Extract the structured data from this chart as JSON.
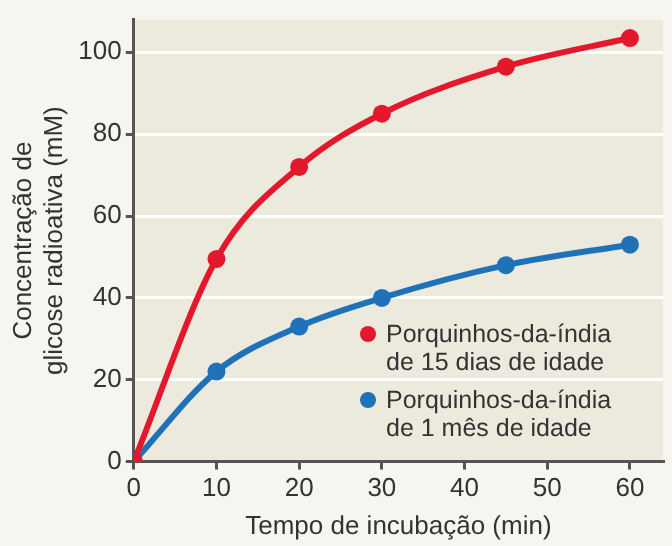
{
  "chart_data": {
    "type": "line",
    "xlabel": "Tempo de incubação (min)",
    "ylabel": "Concentração de\nglicose radioativa (mM)",
    "x": [
      0,
      10,
      20,
      30,
      45,
      60
    ],
    "series": [
      {
        "name": "Porquinhos-da-índia de 15 dias de idade",
        "color": "#e3182d",
        "values": [
          0,
          49.5,
          72,
          85,
          96.5,
          103.5
        ]
      },
      {
        "name": "Porquinhos-da-índia de 1 mês de idade",
        "color": "#1f72b8",
        "values": [
          0,
          22,
          33,
          40,
          48,
          53
        ]
      }
    ],
    "xlim": [
      0,
      64
    ],
    "xticks": [
      0,
      10,
      20,
      30,
      40,
      50,
      60
    ],
    "ylim": [
      0,
      108
    ],
    "yticks": [
      0,
      20,
      40,
      60,
      80,
      100
    ],
    "grid": "y",
    "legend": "bottom right",
    "marker": "circle",
    "line_style": "solid"
  }
}
